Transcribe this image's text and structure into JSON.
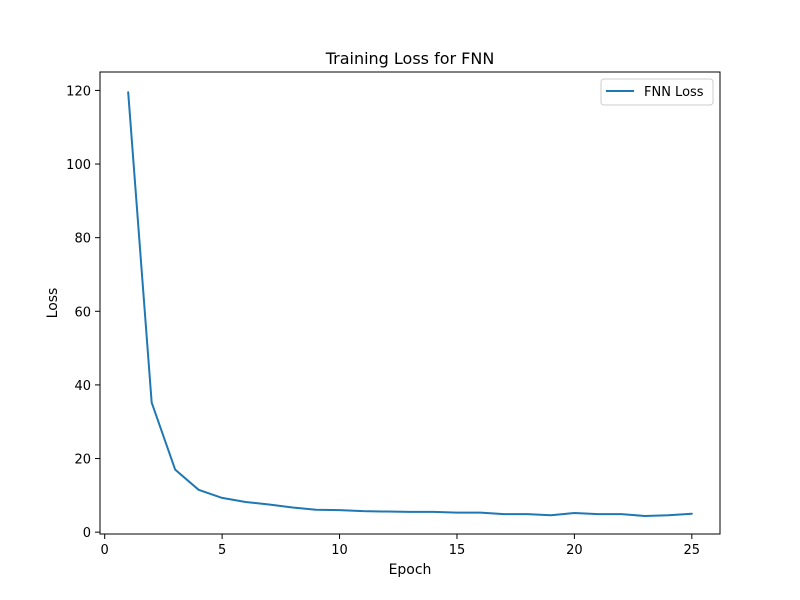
{
  "chart_data": {
    "type": "line",
    "title": "Training Loss for FNN",
    "xlabel": "Epoch",
    "ylabel": "Loss",
    "xlim": [
      -0.2,
      26.2
    ],
    "ylim": [
      -0.5,
      125
    ],
    "xticks": [
      0,
      5,
      10,
      15,
      20,
      25
    ],
    "yticks": [
      0,
      20,
      40,
      60,
      80,
      100,
      120
    ],
    "grid": false,
    "legend_position": "top-right",
    "series": [
      {
        "name": "FNN Loss",
        "color": "#1f77b4",
        "x": [
          1,
          2,
          3,
          4,
          5,
          6,
          7,
          8,
          9,
          10,
          11,
          12,
          13,
          14,
          15,
          16,
          17,
          18,
          19,
          20,
          21,
          22,
          23,
          24,
          25
        ],
        "y": [
          119.5,
          35.2,
          17.0,
          11.5,
          9.3,
          8.2,
          7.5,
          6.7,
          6.1,
          6.0,
          5.7,
          5.6,
          5.5,
          5.5,
          5.3,
          5.3,
          4.9,
          4.9,
          4.6,
          5.2,
          4.9,
          4.9,
          4.4,
          4.6,
          5.0
        ]
      }
    ]
  }
}
